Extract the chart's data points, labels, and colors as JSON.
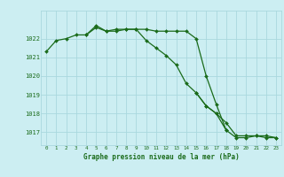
{
  "x": [
    0,
    1,
    2,
    3,
    4,
    5,
    6,
    7,
    8,
    9,
    10,
    11,
    12,
    13,
    14,
    15,
    16,
    17,
    18,
    19,
    20,
    21,
    22,
    23
  ],
  "line1": [
    1021.3,
    1021.9,
    1022.0,
    1022.2,
    1022.2,
    1022.6,
    1022.4,
    1022.4,
    1022.5,
    1022.5,
    1021.9,
    1021.5,
    1021.1,
    1020.6,
    1019.6,
    1019.1,
    1018.4,
    1018.0,
    1017.1,
    null,
    null,
    null,
    null,
    null
  ],
  "line2": [
    null,
    null,
    null,
    null,
    1022.2,
    1022.7,
    1022.4,
    1022.5,
    1022.5,
    1022.5,
    1022.5,
    1022.4,
    1022.4,
    1022.4,
    1022.4,
    1022.0,
    1020.0,
    1018.5,
    1017.1,
    1016.7,
    1016.7,
    1016.8,
    1016.7,
    1016.7
  ],
  "line3": [
    null,
    null,
    null,
    null,
    null,
    null,
    null,
    null,
    null,
    null,
    null,
    null,
    null,
    null,
    null,
    1019.1,
    1018.4,
    1018.0,
    1017.5,
    1016.8,
    1016.8,
    1016.8,
    1016.8,
    1016.7
  ],
  "ylim": [
    1016.3,
    1023.5
  ],
  "yticks": [
    1017,
    1018,
    1019,
    1020,
    1021,
    1022
  ],
  "xlabel": "Graphe pression niveau de la mer (hPa)",
  "bg_color": "#cceef2",
  "grid_color": "#aad8de",
  "line_color": "#1a6b1a",
  "marker": "D",
  "markersize": 2.0,
  "linewidth": 0.9
}
